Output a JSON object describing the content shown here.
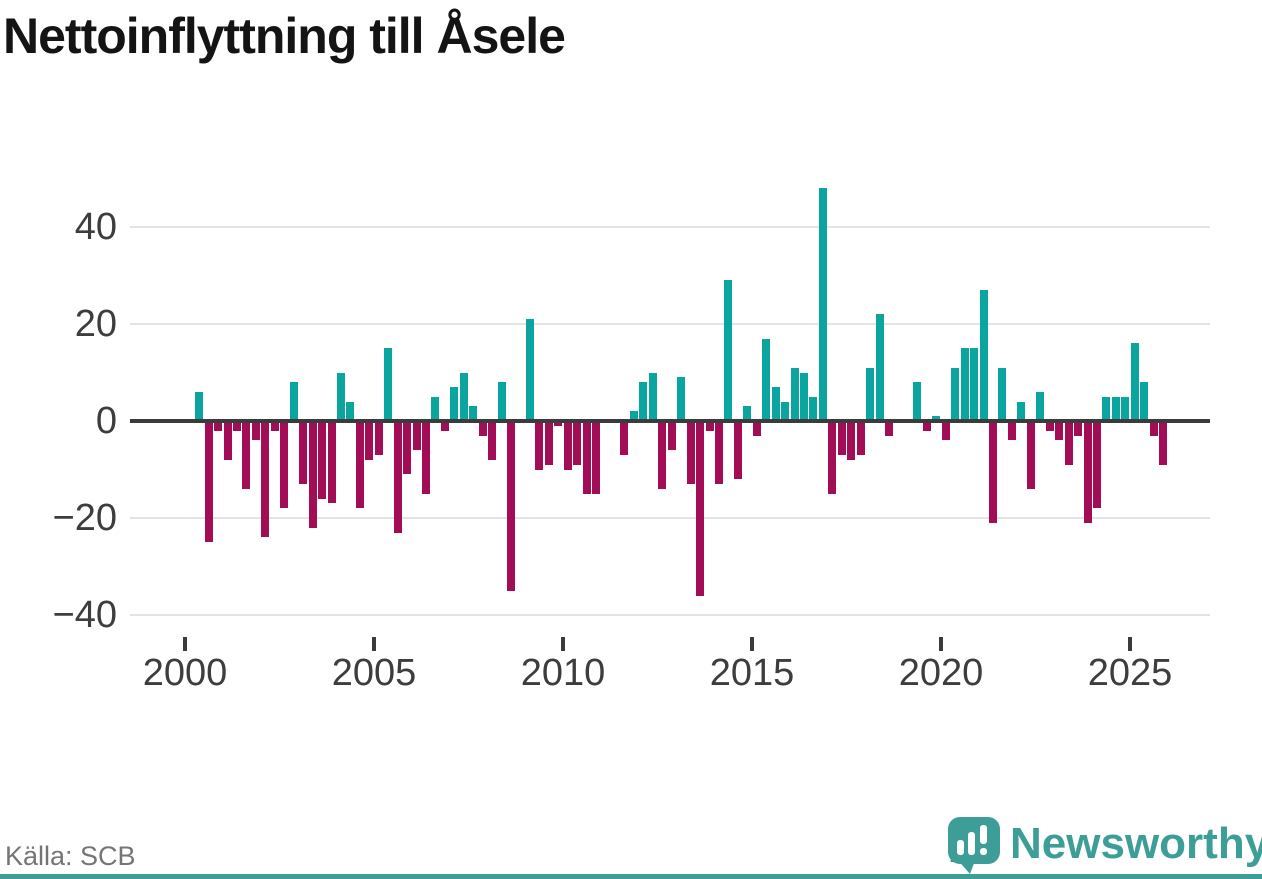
{
  "title": "Nettoinflyttning till Åsele",
  "source_label": "Källa: SCB",
  "logo": {
    "name": "Newsworthy",
    "icon": "newsworthy-speech-bubble-chart-icon"
  },
  "colors": {
    "positive": "#0aa59e",
    "negative": "#a30d55",
    "zero_line": "#3b3b3b",
    "gridline": "#e4e4e4",
    "axis_text": "#3d3d3d",
    "title_text": "#141414",
    "source_text": "#757575",
    "logo_teal": "#3d9e98",
    "bottom_strip": "#3d9e98"
  },
  "chart_data": {
    "type": "bar",
    "title": "Nettoinflyttning till Åsele",
    "frequency": "quarterly",
    "x_start": "2000 Q2",
    "x_end": "2025 Q4",
    "xlabel": "",
    "ylabel": "",
    "ylim": [
      -45,
      52
    ],
    "grid": true,
    "legend": "none",
    "yticks": [
      40,
      20,
      0,
      -20,
      -40
    ],
    "xticks": [
      2000,
      2005,
      2010,
      2015,
      2020,
      2025
    ],
    "values": [
      6,
      -25,
      -2,
      -8,
      -2,
      -14,
      -4,
      -24,
      -2,
      -18,
      8,
      -13,
      -22,
      -16,
      -17,
      10,
      4,
      -18,
      -8,
      -7,
      15,
      -23,
      -11,
      -6,
      -15,
      5,
      -2,
      7,
      10,
      3,
      -3,
      -8,
      8,
      -35,
      0,
      21,
      -10,
      -9,
      -1,
      -10,
      -9,
      -15,
      -15,
      0,
      0,
      -7,
      2,
      8,
      10,
      -14,
      -6,
      9,
      -13,
      -36,
      -2,
      -13,
      29,
      -12,
      3,
      -3,
      17,
      7,
      4,
      11,
      10,
      5,
      48,
      -15,
      -7,
      -8,
      -7,
      11,
      22,
      -3,
      0,
      0,
      8,
      -2,
      1,
      -4,
      11,
      15,
      15,
      27,
      -21,
      11,
      -4,
      4,
      -14,
      6,
      -2,
      -4,
      -9,
      -3,
      -21,
      -18,
      5,
      5,
      5,
      16,
      8,
      -3,
      -9
    ]
  }
}
